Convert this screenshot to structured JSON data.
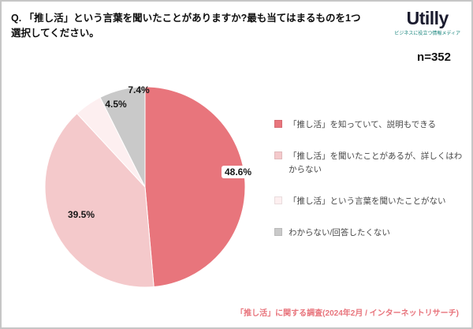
{
  "header": {
    "question_line1": "Q. 「推し活」という言葉を聞いたことがありますか?最も当てはまるものを1つ",
    "question_line2": "選択してください。",
    "logo_text": "Utilly",
    "logo_tagline": "ビジネスに役立つ情報メディア"
  },
  "sample": {
    "label": "n=352"
  },
  "chart_data": {
    "type": "pie",
    "title": "Q. 「推し活」という言葉を聞いたことがありますか?最も当てはまるものを1つ選択してください。",
    "sample_size": 352,
    "unit": "%",
    "direction": "clockwise",
    "start_angle_deg": 0,
    "legend_position": "right",
    "slices": [
      {
        "label": "「推し活」を知っていて、説明もできる",
        "value": 48.6,
        "display": "48.6%",
        "color": "#e8757c"
      },
      {
        "label": "「推し活」を聞いたことがあるが、詳しくはわからない",
        "value": 39.5,
        "display": "39.5%",
        "color": "#f4c9cb"
      },
      {
        "label": "「推し活」という言葉を聞いたことがない",
        "value": 4.5,
        "display": "4.5%",
        "color": "#fdeff0"
      },
      {
        "label": "わからない/回答したくない",
        "value": 7.4,
        "display": "7.4%",
        "color": "#c9c9c9"
      }
    ]
  },
  "footer": {
    "source": "「推し活」に関する調査(2024年2月 / インターネットリサーチ)"
  }
}
